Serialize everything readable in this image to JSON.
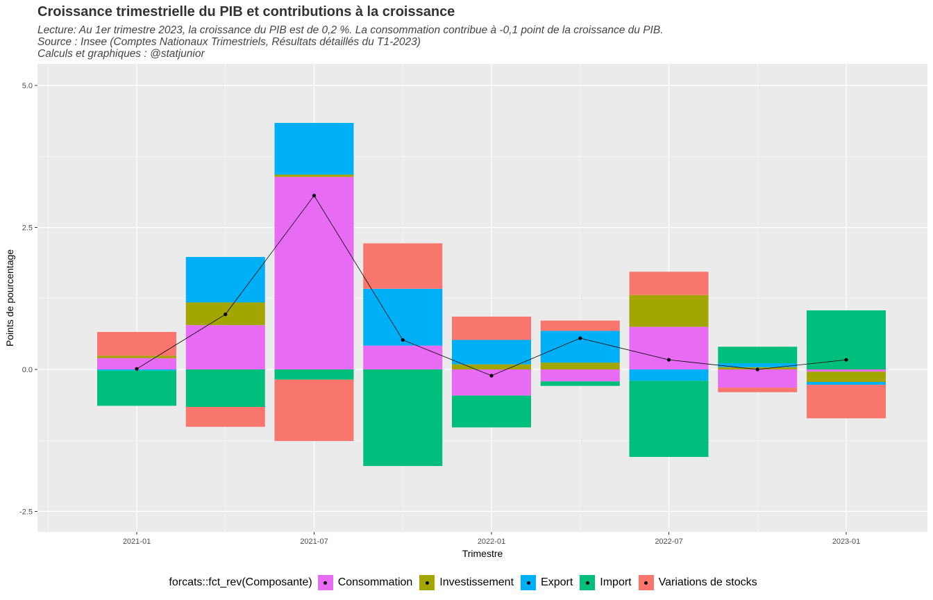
{
  "header": {
    "title": "Croissance trimestrielle du PIB et contributions à la croissance",
    "subtitle1": "Lecture: Au 1er trimestre 2023, la croissance du PIB est de 0,2 %. La consommation contribue à -0,1 point de la croissance du PIB.",
    "subtitle2": "Source : Insee (Comptes Nationaux Trimestriels, Résultats détaillés du T1-2023)",
    "subtitle3": "Calculs et graphiques : @statjunior"
  },
  "legend": {
    "title": "forcats::fct_rev(Composante)"
  },
  "chart_data": {
    "type": "bar",
    "stacked": true,
    "xlabel": "Trimestre",
    "ylabel": "Points de pourcentage",
    "ylim": [
      -2.9,
      5.2
    ],
    "yticks": [
      -2.5,
      0.0,
      2.5,
      5.0
    ],
    "ytick_labels": [
      "-2.5",
      "0.0",
      "2.5",
      "5.0"
    ],
    "xtick_labels": [
      "2021-01",
      "2021-07",
      "2022-01",
      "2022-07",
      "2023-01"
    ],
    "categories": [
      "2021-01",
      "2021-04",
      "2021-07",
      "2021-10",
      "2022-01",
      "2022-04",
      "2022-07",
      "2022-10",
      "2023-01"
    ],
    "series": [
      {
        "name": "Consommation",
        "color": "#E76BF3",
        "values": [
          0.2,
          0.78,
          3.39,
          0.42,
          -0.46,
          -0.21,
          0.75,
          -0.32,
          -0.04
        ]
      },
      {
        "name": "Investissement",
        "color": "#A3A500",
        "values": [
          0.04,
          0.4,
          0.04,
          0.0,
          0.09,
          0.12,
          0.56,
          0.04,
          -0.18
        ]
      },
      {
        "name": "Export",
        "color": "#00B0F6",
        "values": [
          -0.02,
          0.8,
          0.91,
          1.0,
          0.43,
          0.56,
          -0.2,
          0.07,
          -0.05
        ]
      },
      {
        "name": "Import",
        "color": "#00BF7D",
        "values": [
          -0.62,
          -0.66,
          -0.18,
          -1.7,
          -0.56,
          -0.08,
          -1.34,
          0.29,
          1.04
        ]
      },
      {
        "name": "Variations de stocks",
        "color": "#F8766D",
        "values": [
          0.42,
          -0.35,
          -1.08,
          0.8,
          0.41,
          0.18,
          0.41,
          -0.08,
          -0.59
        ]
      }
    ],
    "line": {
      "values": [
        0.01,
        0.97,
        3.06,
        0.52,
        -0.11,
        0.55,
        0.17,
        0.0,
        0.17
      ],
      "color": "#000000"
    },
    "grid": true,
    "legend_position": "bottom"
  }
}
